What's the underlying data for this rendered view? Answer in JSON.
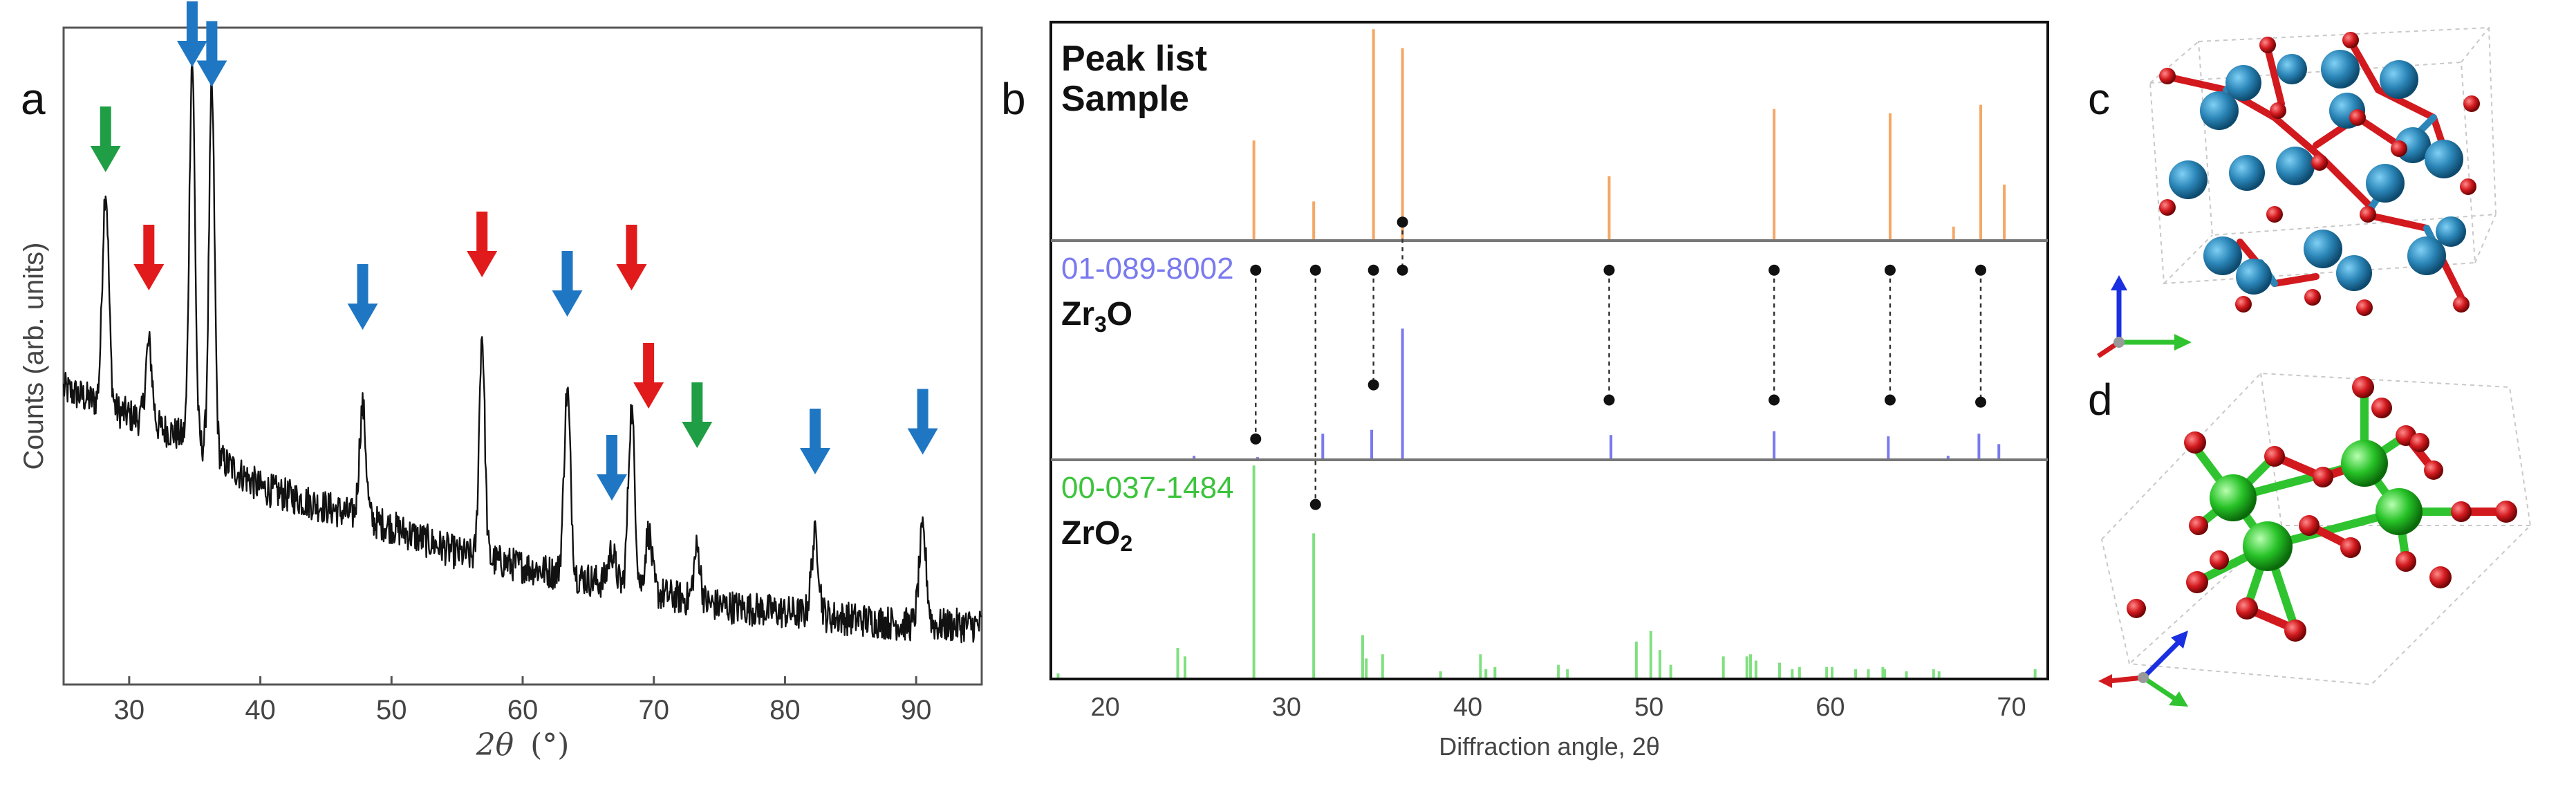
{
  "colors": {
    "line": "#111111",
    "arrow_green": "#1f9e45",
    "arrow_red": "#e11b1b",
    "arrow_blue": "#1f77c4",
    "sample": "#f5a766",
    "zr3o": "#7a7aee",
    "zro2": "#7fe07f",
    "axis_text": "#444444",
    "zr_blue": "#2b86b8",
    "o_red": "#d2191e",
    "zr_green": "#27c227"
  },
  "panel_labels": {
    "a": "a",
    "b": "b",
    "c": "c",
    "d": "d"
  },
  "chart_data": [
    {
      "panel": "a",
      "type": "line",
      "title": "",
      "xlabel": "2θ (°)",
      "xlabel_var": "2θ",
      "xlabel_unit": "(°)",
      "ylabel": "Counts (arb. units)",
      "xlim": [
        25,
        95
      ],
      "ylim": [
        0,
        100
      ],
      "x_ticks": [
        30,
        40,
        50,
        60,
        70,
        80,
        90
      ],
      "x_tick_labels": [
        "30",
        "40",
        "50",
        "60",
        "70",
        "80",
        "90"
      ],
      "baseline": [
        [
          25,
          45
        ],
        [
          30,
          41
        ],
        [
          35,
          37
        ],
        [
          40,
          30
        ],
        [
          45,
          27
        ],
        [
          50,
          24
        ],
        [
          55,
          20
        ],
        [
          60,
          18
        ],
        [
          65,
          16
        ],
        [
          70,
          14
        ],
        [
          75,
          12
        ],
        [
          80,
          11
        ],
        [
          85,
          10
        ],
        [
          90,
          9
        ],
        [
          95,
          9
        ]
      ],
      "peaks": [
        {
          "x": 28.2,
          "h": 33,
          "w": 0.35
        },
        {
          "x": 31.5,
          "h": 12,
          "w": 0.35
        },
        {
          "x": 34.8,
          "h": 58,
          "w": 0.3
        },
        {
          "x": 36.3,
          "h": 55,
          "w": 0.3
        },
        {
          "x": 47.8,
          "h": 17,
          "w": 0.35
        },
        {
          "x": 56.9,
          "h": 34,
          "w": 0.3
        },
        {
          "x": 63.4,
          "h": 28,
          "w": 0.35
        },
        {
          "x": 66.8,
          "h": 5,
          "w": 0.4
        },
        {
          "x": 68.3,
          "h": 27,
          "w": 0.35
        },
        {
          "x": 69.6,
          "h": 9,
          "w": 0.35
        },
        {
          "x": 73.3,
          "h": 8,
          "w": 0.35
        },
        {
          "x": 82.3,
          "h": 12,
          "w": 0.4
        },
        {
          "x": 90.5,
          "h": 14,
          "w": 0.4
        }
      ],
      "noise_amplitude": 2.6,
      "annotations": [
        {
          "x": 28.2,
          "y": 78,
          "color": "green"
        },
        {
          "x": 31.5,
          "y": 60,
          "color": "red"
        },
        {
          "x": 34.8,
          "y": 94,
          "color": "blue"
        },
        {
          "x": 36.3,
          "y": 91,
          "color": "blue"
        },
        {
          "x": 47.8,
          "y": 54,
          "color": "blue"
        },
        {
          "x": 56.9,
          "y": 62,
          "color": "red"
        },
        {
          "x": 63.4,
          "y": 56,
          "color": "blue"
        },
        {
          "x": 66.8,
          "y": 28,
          "color": "blue"
        },
        {
          "x": 68.3,
          "y": 60,
          "color": "red"
        },
        {
          "x": 69.6,
          "y": 42,
          "color": "red"
        },
        {
          "x": 73.3,
          "y": 36,
          "color": "green"
        },
        {
          "x": 82.3,
          "y": 32,
          "color": "blue"
        },
        {
          "x": 90.5,
          "y": 35,
          "color": "blue"
        }
      ]
    },
    {
      "panel": "b",
      "type": "bar",
      "title": "",
      "xlabel": "Diffraction angle, 2θ",
      "xlim": [
        17,
        72
      ],
      "x_ticks": [
        20,
        30,
        40,
        50,
        60,
        70
      ],
      "x_tick_labels": [
        "20",
        "30",
        "40",
        "50",
        "60",
        "70"
      ],
      "ylim": [
        0,
        100
      ],
      "series": [
        {
          "name": "Sample",
          "legend_line1": "Peak list",
          "legend_line2": "Sample",
          "color": "sample",
          "x": [
            28.2,
            31.5,
            34.8,
            36.4,
            47.8,
            56.9,
            63.3,
            66.8,
            68.3,
            69.6
          ],
          "values": [
            47,
            18,
            100,
            91,
            30,
            62,
            60,
            6,
            64,
            26
          ]
        },
        {
          "name": "Zr3O",
          "code": "01-089-8002",
          "formula": "Zr",
          "formula_sub": "3",
          "formula_tail": "O",
          "color": "zr3o",
          "x": [
            24.9,
            28.4,
            32.0,
            34.7,
            36.4,
            47.9,
            56.9,
            63.2,
            66.5,
            68.2,
            69.3
          ],
          "values": [
            2,
            1,
            19,
            22,
            100,
            18,
            21,
            17,
            2,
            19,
            11
          ]
        },
        {
          "name": "ZrO2",
          "code": "00-037-1484",
          "formula": "ZrO",
          "formula_sub": "2",
          "formula_tail": "",
          "color": "zro2",
          "x": [
            17.4,
            24.0,
            24.4,
            28.2,
            31.5,
            34.2,
            34.4,
            35.3,
            38.5,
            40.7,
            41.0,
            41.5,
            45.0,
            45.5,
            49.3,
            50.1,
            50.6,
            51.2,
            54.1,
            55.4,
            55.6,
            55.9,
            57.2,
            57.9,
            58.3,
            59.8,
            60.1,
            61.4,
            62.1,
            62.9,
            63.0,
            64.2,
            65.7,
            66.0,
            71.3
          ],
          "values": [
            2,
            14,
            10,
            100,
            68,
            20,
            9,
            11,
            3,
            11,
            4,
            5,
            6,
            4,
            17,
            22,
            13,
            6,
            10,
            10,
            11,
            8,
            7,
            4,
            5,
            5,
            5,
            4,
            4,
            5,
            4,
            3,
            4,
            3,
            4
          ]
        }
      ],
      "match_lines": [
        {
          "x": 28.3,
          "d1": 0.13,
          "d2": 0.91
        },
        {
          "x": 31.6,
          "d1": 0.13,
          "d3": 0.2
        },
        {
          "x": 34.8,
          "d1": 0.13,
          "d2": 0.66
        },
        {
          "x": 36.4,
          "d0": 0.92,
          "d1": 0.13
        },
        {
          "x": 47.8,
          "d1": 0.13,
          "d2": 0.73
        },
        {
          "x": 56.9,
          "d1": 0.13,
          "d2": 0.73
        },
        {
          "x": 63.3,
          "d1": 0.13,
          "d2": 0.73
        },
        {
          "x": 68.3,
          "d1": 0.13,
          "d2": 0.74
        }
      ]
    }
  ]
}
